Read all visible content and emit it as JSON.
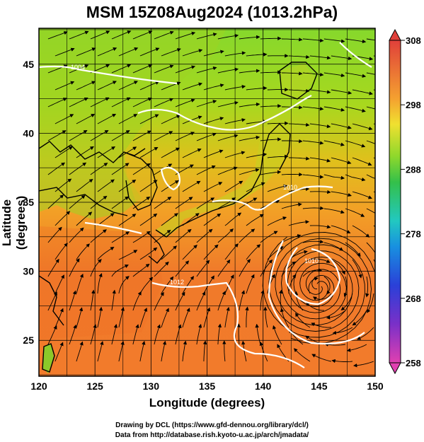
{
  "title": "MSM 15Z08Aug2024 (1013.2hPa)",
  "axes": {
    "xlabel": "Longitude (degrees)",
    "ylabel": "Latitude  (degrees)",
    "x_ticks": [
      "120",
      "125",
      "130",
      "135",
      "140",
      "145",
      "150"
    ],
    "y_ticks": [
      "25",
      "30",
      "35",
      "40",
      "45"
    ],
    "xlim": [
      120,
      150
    ],
    "ylim": [
      22.4,
      47.6
    ]
  },
  "colorbar": {
    "ticks": [
      "308",
      "298",
      "288",
      "278",
      "268",
      "258"
    ],
    "range": [
      258,
      308
    ]
  },
  "isobar_labels": [
    "1004",
    "1010",
    "1010",
    "1012"
  ],
  "colors": {
    "warm": "#f07a2a",
    "mid": "#d9c820",
    "cool": "#7fd12a",
    "sea_land": "#ee8a33",
    "streamline": "#000000",
    "isobar": "#ffffff"
  },
  "credits": {
    "line1": "Drawing by DCL (https://www.gfd-dennou.org/library/dcl/)",
    "line2": "Data from http://database.rish.kyoto-u.ac.jp/arch/jmadata/"
  }
}
